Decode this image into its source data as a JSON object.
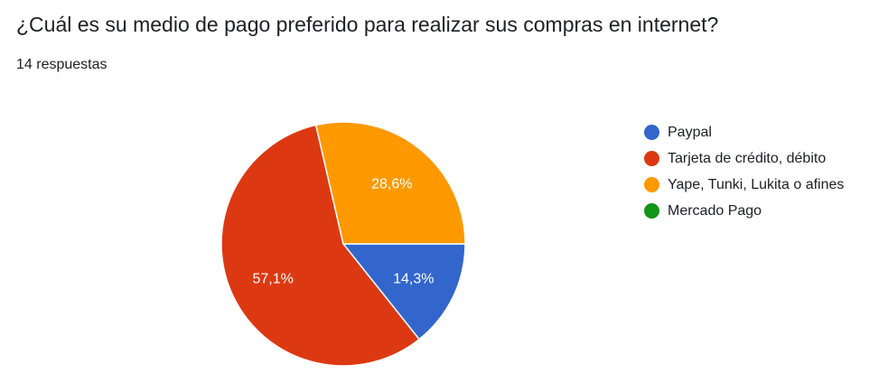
{
  "header": {
    "question": "¿Cuál es su medio de pago preferido para realizar sus compras en internet?",
    "responses": "14 respuestas"
  },
  "colors": {
    "paypal": "#3366cc",
    "tarjeta": "#dc3912",
    "yape": "#ff9900",
    "mercado_pago": "#109618",
    "slice_border": "#ffffff"
  },
  "chart_data": {
    "type": "pie",
    "title": "¿Cuál es su medio de pago preferido para realizar sus compras en internet?",
    "subtitle": "14 respuestas",
    "categories": [
      "Paypal",
      "Tarjeta de crédito, débito",
      "Yape, Tunki, Lukita o afines",
      "Mercado Pago"
    ],
    "values": [
      14.3,
      57.1,
      28.6,
      0
    ],
    "value_labels": [
      "14,3%",
      "57,1%",
      "28,6%",
      ""
    ],
    "colors": [
      "#3366cc",
      "#dc3912",
      "#ff9900",
      "#109618"
    ],
    "legend_position": "right"
  }
}
